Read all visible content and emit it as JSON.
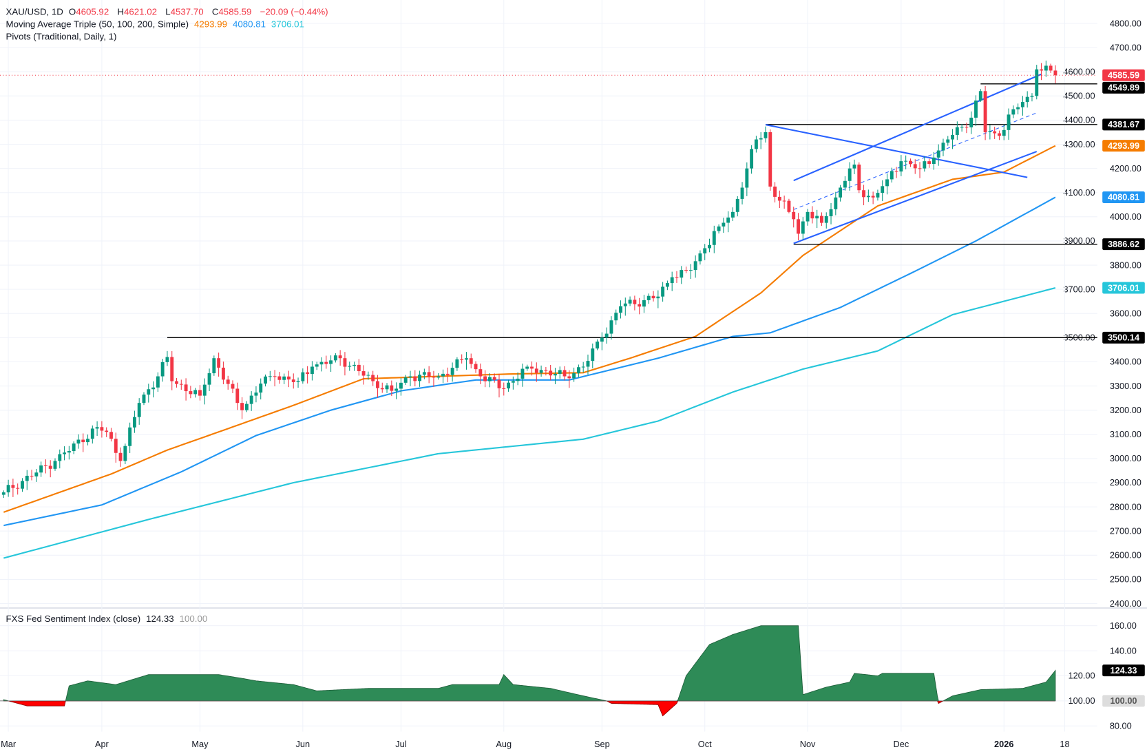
{
  "legend": {
    "symbol": "XAU/USD, 1D",
    "open_label": "O",
    "open": "4605.92",
    "high_label": "H",
    "high": "4621.02",
    "low_label": "L",
    "low": "4537.70",
    "close_label": "C",
    "close": "4585.59",
    "change": "−20.09 (−0.44%)",
    "ma_title": "Moving Average Triple (50, 100, 200, Simple)",
    "ma50": "4293.99",
    "ma100": "4080.81",
    "ma200": "3706.01",
    "pivots_title": "Pivots (Traditional, Daily, 1)",
    "indicator_title": "FXS Fed Sentiment Index (close)",
    "indicator_value": "124.33",
    "indicator_base": "100.00"
  },
  "colors": {
    "up": "#089981",
    "down": "#f23645",
    "ma50": "#f57c00",
    "ma100": "#2196f3",
    "ma200": "#26c6da",
    "trendline": "#2962ff",
    "sentiment_up": "#2e8b57",
    "sentiment_down": "#ff0000",
    "pivot": "#000000"
  },
  "chart_data": [
    {
      "type": "candlestick",
      "title": "XAU/USD, 1D",
      "ylim": [
        2400,
        4800
      ],
      "y_ticks": [
        4800,
        4700,
        4600,
        4500,
        4400,
        4300,
        4200,
        4100,
        4000,
        3900,
        3800,
        3700,
        3600,
        3500,
        3400,
        3300,
        3200,
        3100,
        3000,
        2900,
        2800,
        2700,
        2600,
        2500,
        2400
      ],
      "x_ticks": [
        {
          "label": "Mar",
          "bar": 1
        },
        {
          "label": "Apr",
          "bar": 21
        },
        {
          "label": "May",
          "bar": 42
        },
        {
          "label": "Jun",
          "bar": 64
        },
        {
          "label": "Jul",
          "bar": 85
        },
        {
          "label": "Aug",
          "bar": 107
        },
        {
          "label": "Sep",
          "bar": 128
        },
        {
          "label": "Oct",
          "bar": 150
        },
        {
          "label": "Nov",
          "bar": 172
        },
        {
          "label": "Dec",
          "bar": 192
        },
        {
          "label": "2026",
          "bar": 214,
          "bold": true
        },
        {
          "label": "18",
          "bar": 227
        }
      ],
      "close_path": [
        [
          0,
          2860
        ],
        [
          11,
          2990
        ],
        [
          20,
          3130
        ],
        [
          22,
          3110
        ],
        [
          25,
          2990
        ],
        [
          29,
          3230
        ],
        [
          33,
          3340
        ],
        [
          35,
          3420
        ],
        [
          36,
          3320
        ],
        [
          42,
          3260
        ],
        [
          45,
          3415
        ],
        [
          50,
          3230
        ],
        [
          51,
          3200
        ],
        [
          55,
          3310
        ],
        [
          58,
          3340
        ],
        [
          63,
          3320
        ],
        [
          66,
          3380
        ],
        [
          72,
          3415
        ],
        [
          79,
          3320
        ],
        [
          83,
          3280
        ],
        [
          87,
          3340
        ],
        [
          93,
          3340
        ],
        [
          99,
          3415
        ],
        [
          102,
          3340
        ],
        [
          107,
          3290
        ],
        [
          112,
          3380
        ],
        [
          120,
          3340
        ],
        [
          124,
          3380
        ],
        [
          128,
          3500
        ],
        [
          132,
          3630
        ],
        [
          137,
          3655
        ],
        [
          140,
          3670
        ],
        [
          143,
          3750
        ],
        [
          147,
          3780
        ],
        [
          150,
          3870
        ],
        [
          153,
          3960
        ],
        [
          156,
          4020
        ],
        [
          159,
          4200
        ],
        [
          161,
          4320
        ],
        [
          163,
          4350
        ],
        [
          164,
          4125
        ],
        [
          168,
          4020
        ],
        [
          169,
          3990
        ],
        [
          170,
          3930
        ],
        [
          172,
          4020
        ],
        [
          175,
          3975
        ],
        [
          178,
          4080
        ],
        [
          181,
          4200
        ],
        [
          182,
          4216
        ],
        [
          183,
          4110
        ],
        [
          186,
          4080
        ],
        [
          189,
          4155
        ],
        [
          192,
          4230
        ],
        [
          196,
          4200
        ],
        [
          199,
          4245
        ],
        [
          202,
          4320
        ],
        [
          207,
          4410
        ],
        [
          209,
          4520
        ],
        [
          210,
          4350
        ],
        [
          213,
          4335
        ],
        [
          216,
          4445
        ],
        [
          218,
          4475
        ],
        [
          220,
          4500
        ],
        [
          221,
          4610
        ],
        [
          222,
          4605
        ],
        [
          223,
          4625
        ],
        [
          224,
          4605
        ],
        [
          225,
          4585.59
        ]
      ],
      "last_price": {
        "value": 4585.59,
        "label": "4585.59"
      },
      "moving_averages": [
        {
          "name": "MA50",
          "color": "#f57c00",
          "label": "4293.99",
          "points": [
            [
              0,
              2778
            ],
            [
              23,
              2936
            ],
            [
              35,
              3035
            ],
            [
              46,
              3110
            ],
            [
              62,
              3220
            ],
            [
              77,
              3330
            ],
            [
              93,
              3340
            ],
            [
              109,
              3350
            ],
            [
              124,
              3355
            ],
            [
              134,
              3415
            ],
            [
              148,
              3505
            ],
            [
              162,
              3685
            ],
            [
              171,
              3840
            ],
            [
              187,
              4045
            ],
            [
              203,
              4155
            ],
            [
              214,
              4185
            ],
            [
              225,
              4293.99
            ]
          ]
        },
        {
          "name": "MA100",
          "color": "#2196f3",
          "label": "4080.81",
          "points": [
            [
              0,
              2723
            ],
            [
              21,
              2808
            ],
            [
              38,
              2945
            ],
            [
              54,
              3095
            ],
            [
              70,
              3200
            ],
            [
              85,
              3280
            ],
            [
              101,
              3325
            ],
            [
              121,
              3325
            ],
            [
              140,
              3415
            ],
            [
              156,
              3505
            ],
            [
              164,
              3520
            ],
            [
              179,
              3625
            ],
            [
              195,
              3775
            ],
            [
              208,
              3900
            ],
            [
              225,
              4080.81
            ]
          ]
        },
        {
          "name": "MA200",
          "color": "#26c6da",
          "label": "3706.01",
          "points": [
            [
              0,
              2588
            ],
            [
              31,
              2748
            ],
            [
              62,
              2900
            ],
            [
              93,
              3020
            ],
            [
              124,
              3080
            ],
            [
              140,
              3155
            ],
            [
              156,
              3275
            ],
            [
              171,
              3370
            ],
            [
              187,
              3445
            ],
            [
              203,
              3595
            ],
            [
              225,
              3706.01
            ]
          ]
        }
      ],
      "pivot_lines": [
        {
          "value": 3500.14,
          "label": "3500.14",
          "from_bar": 35
        },
        {
          "value": 4381.67,
          "label": "4381.67",
          "from_bar": 163
        },
        {
          "value": 3886.62,
          "label": "3886.62",
          "from_bar": 169
        },
        {
          "value": 4549.89,
          "label": "4549.89",
          "from_bar": 209
        }
      ],
      "trendlines": [
        {
          "from": [
            163,
            4381
          ],
          "to": [
            219,
            4163
          ],
          "dashed": false
        },
        {
          "from": [
            169,
            4150
          ],
          "to": [
            222,
            4590
          ],
          "dashed": false
        },
        {
          "from": [
            169,
            3890
          ],
          "to": [
            221,
            4270
          ],
          "dashed": false
        },
        {
          "from": [
            169,
            4030
          ],
          "to": [
            221,
            4430
          ],
          "dashed": true
        }
      ]
    },
    {
      "type": "area",
      "title": "FXS Fed Sentiment Index (close)",
      "ylim": [
        75,
        168
      ],
      "baseline": 100,
      "y_ticks": [
        160,
        140,
        120,
        100,
        80
      ],
      "last_value": {
        "value": 124.33,
        "label": "124.33"
      },
      "baseline_label": "100.00",
      "points": [
        [
          0,
          101
        ],
        [
          5,
          96
        ],
        [
          13,
          96
        ],
        [
          14,
          112
        ],
        [
          18,
          116
        ],
        [
          24,
          113
        ],
        [
          31,
          121
        ],
        [
          46,
          121
        ],
        [
          51,
          118
        ],
        [
          54,
          116
        ],
        [
          62,
          113
        ],
        [
          67,
          108
        ],
        [
          78,
          110
        ],
        [
          93,
          110
        ],
        [
          96,
          113
        ],
        [
          106,
          113
        ],
        [
          107,
          121
        ],
        [
          109,
          113
        ],
        [
          117,
          110
        ],
        [
          124,
          104
        ],
        [
          129,
          100
        ],
        [
          130,
          98
        ],
        [
          140,
          97
        ],
        [
          141,
          88
        ],
        [
          144,
          98
        ],
        [
          146,
          120
        ],
        [
          151,
          145
        ],
        [
          156,
          153
        ],
        [
          162,
          160
        ],
        [
          170,
          160
        ],
        [
          171,
          105
        ],
        [
          176,
          111
        ],
        [
          181,
          115
        ],
        [
          182,
          122
        ],
        [
          187,
          120
        ],
        [
          188,
          122
        ],
        [
          199,
          122
        ],
        [
          200,
          98
        ],
        [
          203,
          104
        ],
        [
          209,
          109
        ],
        [
          218,
          110
        ],
        [
          223,
          115
        ],
        [
          225,
          124.33
        ]
      ]
    }
  ]
}
